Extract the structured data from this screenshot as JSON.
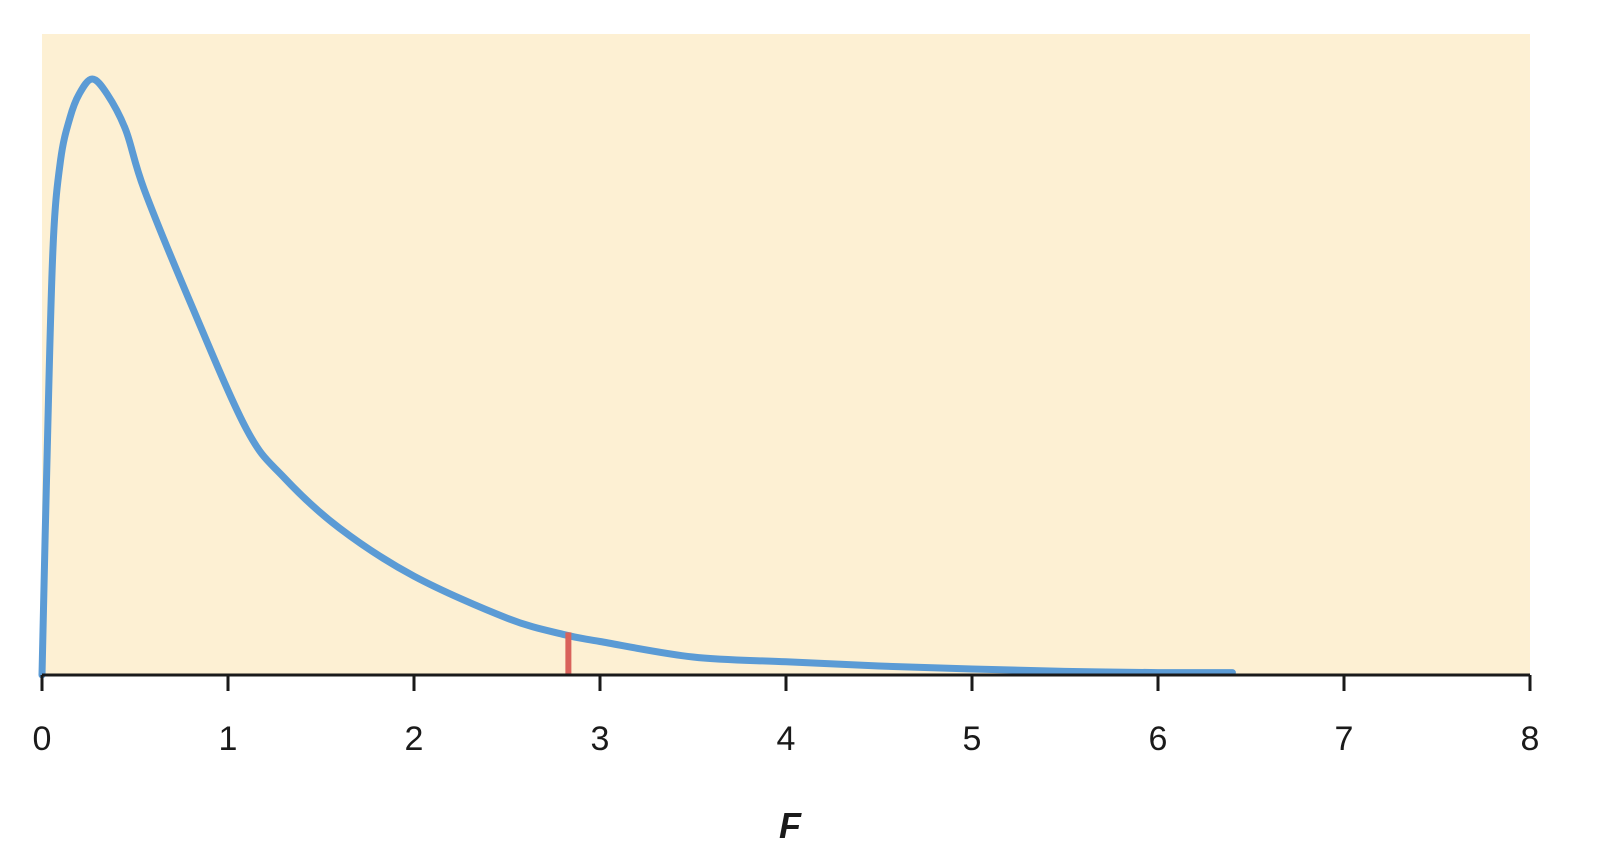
{
  "chart_data": {
    "type": "line",
    "title": "",
    "xlabel": "F",
    "ylabel": "",
    "xlim": [
      0,
      8
    ],
    "ylim": [
      0,
      1
    ],
    "x_ticks": [
      "0",
      "1",
      "2",
      "3",
      "4",
      "5",
      "6",
      "7",
      "8"
    ],
    "grid": false,
    "colors": {
      "plot_background": "#fdf0d3",
      "curve": "#5b9bd5",
      "marker": "#d9625b",
      "axis": "#1a1a1a"
    },
    "series": [
      {
        "x": [
          0,
          0.03,
          0.06,
          0.1,
          0.15,
          0.2,
          0.27,
          0.35,
          0.45,
          0.55,
          0.8,
          1.1,
          1.3,
          1.6,
          2.0,
          2.5,
          2.8,
          3.0,
          3.5,
          4.0,
          4.5,
          5.0,
          5.5,
          6.0,
          6.4
        ],
        "y": [
          0.0,
          0.4,
          0.72,
          0.86,
          0.93,
          0.97,
          0.995,
          0.97,
          0.91,
          0.81,
          0.62,
          0.41,
          0.33,
          0.245,
          0.165,
          0.095,
          0.068,
          0.056,
          0.03,
          0.022,
          0.015,
          0.01,
          0.006,
          0.004,
          0.004
        ]
      }
    ],
    "annotations": [
      {
        "type": "vertical-marker",
        "x": 2.83
      }
    ]
  }
}
